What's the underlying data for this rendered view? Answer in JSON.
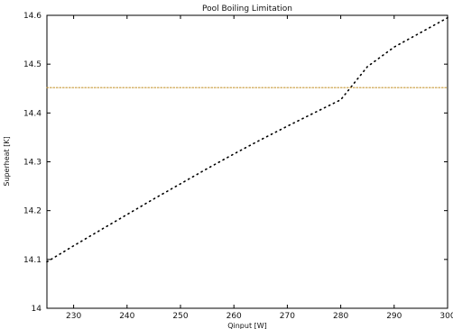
{
  "chart_data": {
    "type": "line",
    "title": "Pool Boiling Limitation",
    "xlabel": "Qinput [W]",
    "ylabel": "Superheat [K]",
    "xlim": [
      225,
      300
    ],
    "ylim": [
      14.0,
      14.6
    ],
    "x_ticks": [
      "230",
      "240",
      "250",
      "260",
      "270",
      "280",
      "290",
      "300"
    ],
    "y_ticks": [
      "14",
      "14.1",
      "14.2",
      "14.3",
      "14.4",
      "14.5",
      "14.6"
    ],
    "grid": false,
    "legend": "none",
    "series": [
      {
        "line_style": "dotted",
        "color": "#000000",
        "x": [
          225,
          230,
          235,
          240,
          245,
          250,
          255,
          260,
          265,
          270,
          275,
          280,
          285,
          290,
          295,
          300
        ],
        "y": [
          14.095,
          14.128,
          14.16,
          14.192,
          14.224,
          14.255,
          14.286,
          14.316,
          14.345,
          14.373,
          14.4,
          14.427,
          14.495,
          14.535,
          14.565,
          14.595
        ]
      },
      {
        "line_style": "dotted",
        "color": "#c89a3a",
        "x": [
          225,
          300
        ],
        "y": [
          14.452,
          14.452
        ]
      }
    ]
  }
}
